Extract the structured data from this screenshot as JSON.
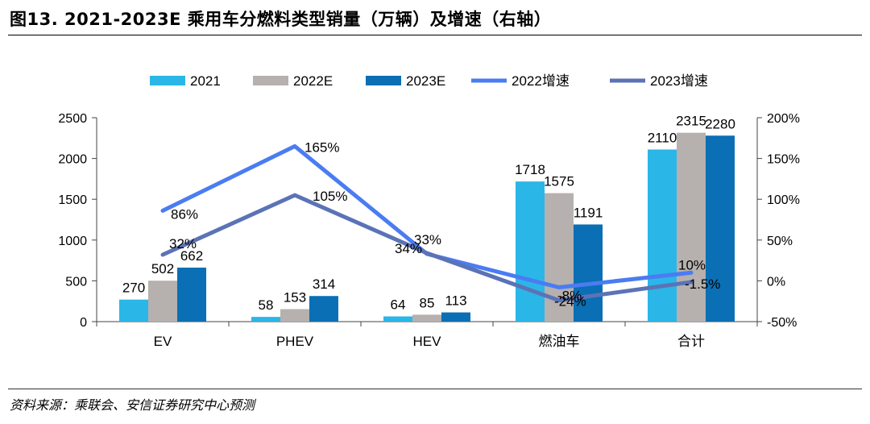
{
  "header": {
    "title": "图13. 2021-2023E 乘用车分燃料类型销量（万辆）及增速（右轴）"
  },
  "footer": {
    "source": "资料来源：乘联会、安信证券研究中心预测"
  },
  "colors": {
    "s2021": "#2bb6e8",
    "s2022E": "#b6b0ae",
    "s2023E": "#0a6fb4",
    "g2022": "#4a7cf2",
    "g2023": "#5b73b6"
  },
  "chart_data": {
    "type": "bar",
    "title": "2021-2023E 乘用车分燃料类型销量（万辆）及增速（右轴）",
    "categories": [
      "EV",
      "PHEV",
      "HEV",
      "燃油车",
      "合计"
    ],
    "series": [
      {
        "name": "2021",
        "values": [
          270,
          58,
          64,
          1718,
          2110
        ]
      },
      {
        "name": "2022E",
        "values": [
          502,
          153,
          85,
          1575,
          2315
        ]
      },
      {
        "name": "2023E",
        "values": [
          662,
          314,
          113,
          1191,
          2280
        ]
      }
    ],
    "line_series": [
      {
        "name": "2022增速",
        "values": [
          86,
          165,
          33,
          -8,
          10
        ],
        "labels": [
          "86%",
          "165%",
          "33%",
          "-8%",
          "10%"
        ]
      },
      {
        "name": "2023增速",
        "values": [
          32,
          105,
          34,
          -24,
          -1.5
        ],
        "labels": [
          "32%",
          "105%",
          "34%",
          "-24%",
          "-1.5%"
        ]
      }
    ],
    "y_left": {
      "min": 0,
      "max": 2500,
      "ticks": [
        "0",
        "500",
        "1000",
        "1500",
        "2000",
        "2500"
      ]
    },
    "y_right": {
      "min": -50,
      "max": 200,
      "ticks": [
        "-50%",
        "0%",
        "50%",
        "100%",
        "150%",
        "200%"
      ]
    },
    "legend": [
      "2021",
      "2022E",
      "2023E",
      "2022增速",
      "2023增速"
    ],
    "legend_position": "top"
  }
}
